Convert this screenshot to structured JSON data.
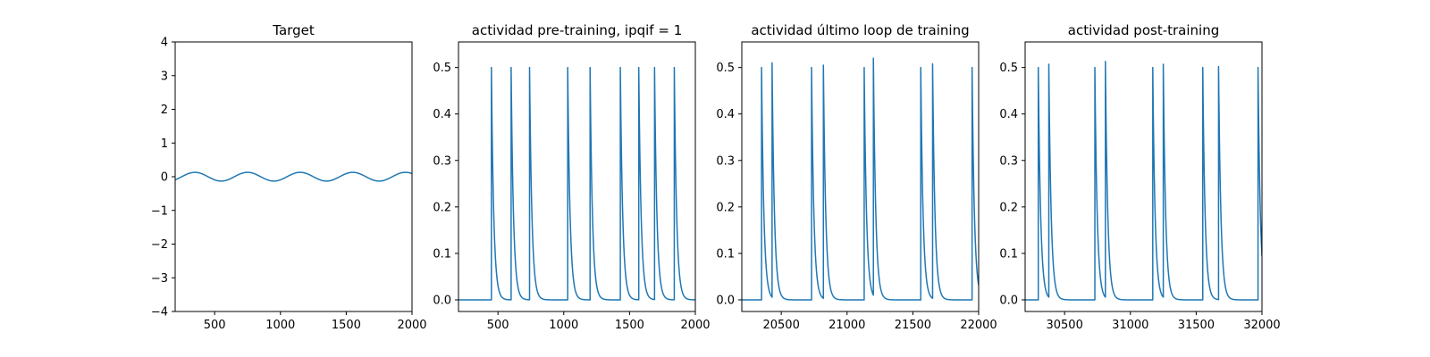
{
  "chart_data": [
    {
      "type": "line",
      "title": "Target",
      "xlabel": "",
      "ylabel": "",
      "xlim": [
        200,
        2000
      ],
      "ylim": [
        -4,
        4
      ],
      "xticks": [
        500,
        1000,
        1500,
        2000
      ],
      "yticks": [
        -4,
        -3,
        -2,
        -1,
        0,
        1,
        2,
        3,
        4
      ],
      "color": "#1f77b4",
      "series": [
        {
          "waveform": "sine",
          "amplitude": 0.13,
          "period": 400,
          "peak_at": 350
        }
      ]
    },
    {
      "type": "line",
      "title": "actividad pre-training, ipqif = 1",
      "xlabel": "",
      "ylabel": "",
      "xlim": [
        200,
        2000
      ],
      "ylim": [
        -0.025,
        0.555
      ],
      "xticks": [
        500,
        1000,
        1500,
        2000
      ],
      "yticks": [
        0.0,
        0.1,
        0.2,
        0.3,
        0.4,
        0.5
      ],
      "color": "#1f77b4",
      "series": [
        {
          "waveform": "spike-decay",
          "start": 200,
          "end": 2000,
          "decay": 18,
          "spikes": [
            [
              450,
              0.5
            ],
            [
              600,
              0.5
            ],
            [
              740,
              0.5
            ],
            [
              1030,
              0.5
            ],
            [
              1200,
              0.5
            ],
            [
              1430,
              0.5
            ],
            [
              1570,
              0.5
            ],
            [
              1690,
              0.5
            ],
            [
              1840,
              0.5
            ]
          ]
        }
      ]
    },
    {
      "type": "line",
      "title": "actividad último loop de training",
      "xlabel": "",
      "ylabel": "",
      "xlim": [
        20200,
        22000
      ],
      "ylim": [
        -0.025,
        0.555
      ],
      "xticks": [
        20500,
        21000,
        21500,
        22000
      ],
      "yticks": [
        0.0,
        0.1,
        0.2,
        0.3,
        0.4,
        0.5
      ],
      "color": "#1f77b4",
      "series": [
        {
          "waveform": "spike-decay",
          "start": 20200,
          "end": 22000,
          "decay": 18,
          "spikes": [
            [
              20350,
              0.5
            ],
            [
              20430,
              0.51
            ],
            [
              20730,
              0.5
            ],
            [
              20820,
              0.505
            ],
            [
              21130,
              0.5
            ],
            [
              21200,
              0.52
            ],
            [
              21560,
              0.5
            ],
            [
              21650,
              0.508
            ],
            [
              21950,
              0.5
            ]
          ]
        }
      ]
    },
    {
      "type": "line",
      "title": "actividad post-training",
      "xlabel": "",
      "ylabel": "",
      "xlim": [
        30200,
        32000
      ],
      "ylim": [
        -0.025,
        0.555
      ],
      "xticks": [
        30500,
        31000,
        31500,
        32000
      ],
      "yticks": [
        0.0,
        0.1,
        0.2,
        0.3,
        0.4,
        0.5
      ],
      "color": "#1f77b4",
      "series": [
        {
          "waveform": "spike-decay",
          "start": 30200,
          "end": 32000,
          "decay": 18,
          "spikes": [
            [
              30300,
              0.5
            ],
            [
              30380,
              0.507
            ],
            [
              30730,
              0.5
            ],
            [
              30810,
              0.513
            ],
            [
              31170,
              0.5
            ],
            [
              31250,
              0.507
            ],
            [
              31550,
              0.5
            ],
            [
              31670,
              0.502
            ],
            [
              31970,
              0.5
            ]
          ]
        }
      ]
    }
  ]
}
